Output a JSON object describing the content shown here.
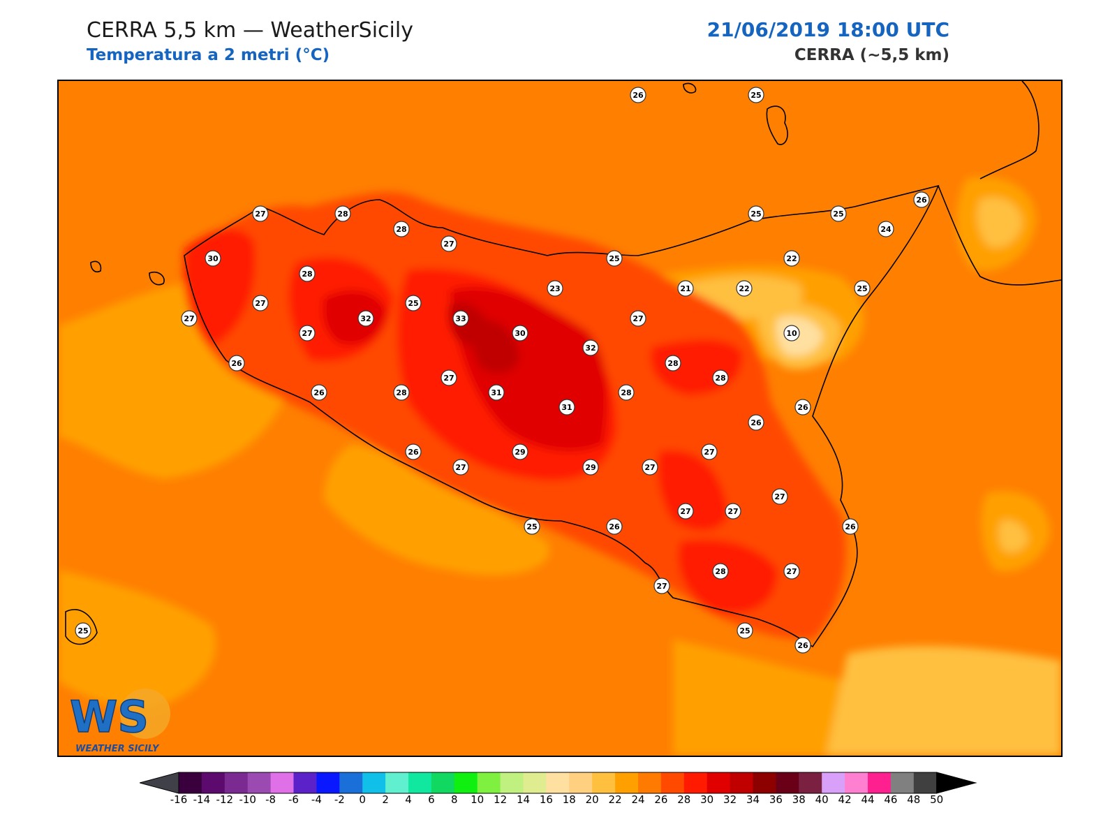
{
  "header": {
    "title": "CERRA 5,5 km — WeatherSicily",
    "subtitle": "Temperatura a 2 metri (°C)",
    "datetime": "21/06/2019 18:00 UTC",
    "model": "CERRA (~5,5 km)"
  },
  "logo": {
    "big": "WS",
    "small": "WEATHER SICILY"
  },
  "colorbar": {
    "ticks": [
      "-16",
      "-14",
      "-12",
      "-10",
      "-8",
      "-6",
      "-4",
      "-2",
      "0",
      "2",
      "4",
      "6",
      "8",
      "10",
      "12",
      "14",
      "16",
      "18",
      "20",
      "22",
      "24",
      "26",
      "28",
      "30",
      "32",
      "34",
      "36",
      "38",
      "40",
      "42",
      "44",
      "46",
      "48",
      "50"
    ],
    "colors": [
      "#3a003e",
      "#5c0a6e",
      "#7a2a90",
      "#9a4ab0",
      "#e070e8",
      "#5a22c8",
      "#0a18ff",
      "#1a70d8",
      "#10c0e8",
      "#60f0d0",
      "#10e8a0",
      "#10d860",
      "#10f010",
      "#80f040",
      "#c0f080",
      "#e0ec90",
      "#ffe0a0",
      "#ffd080",
      "#ffc040",
      "#ffa000",
      "#ff7a00",
      "#ff4a00",
      "#ff1a00",
      "#e00000",
      "#c00000",
      "#8c0000",
      "#6a0018",
      "#7a2040",
      "#d8a0f8",
      "#ff80d0",
      "#ff2090",
      "#808080",
      "#404040"
    ],
    "under_color": "#404048",
    "over_color": "#000000"
  },
  "stations": [
    {
      "v": "26"
    },
    {
      "v": "25"
    },
    {
      "v": "27"
    },
    {
      "v": "28"
    },
    {
      "v": "28"
    },
    {
      "v": "27"
    },
    {
      "v": "25"
    },
    {
      "v": "25"
    },
    {
      "v": "26"
    },
    {
      "v": "24"
    },
    {
      "v": "30"
    },
    {
      "v": "28"
    },
    {
      "v": "27"
    },
    {
      "v": "23"
    },
    {
      "v": "25"
    },
    {
      "v": "22"
    },
    {
      "v": "21"
    },
    {
      "v": "22"
    },
    {
      "v": "25"
    },
    {
      "v": "27"
    },
    {
      "v": "32"
    },
    {
      "v": "25"
    },
    {
      "v": "33"
    },
    {
      "v": "27"
    },
    {
      "v": "30"
    },
    {
      "v": "27"
    },
    {
      "v": "10"
    },
    {
      "v": "32"
    },
    {
      "v": "26"
    },
    {
      "v": "28"
    },
    {
      "v": "26"
    },
    {
      "v": "28"
    },
    {
      "v": "27"
    },
    {
      "v": "31"
    },
    {
      "v": "28"
    },
    {
      "v": "28"
    },
    {
      "v": "31"
    },
    {
      "v": "26"
    },
    {
      "v": "26"
    },
    {
      "v": "26"
    },
    {
      "v": "29"
    },
    {
      "v": "27"
    },
    {
      "v": "27"
    },
    {
      "v": "29"
    },
    {
      "v": "27"
    },
    {
      "v": "27"
    },
    {
      "v": "27"
    },
    {
      "v": "27"
    },
    {
      "v": "25"
    },
    {
      "v": "26"
    },
    {
      "v": "26"
    },
    {
      "v": "28"
    },
    {
      "v": "27"
    },
    {
      "v": "27"
    },
    {
      "v": "25"
    },
    {
      "v": "25"
    },
    {
      "v": "26"
    }
  ]
}
